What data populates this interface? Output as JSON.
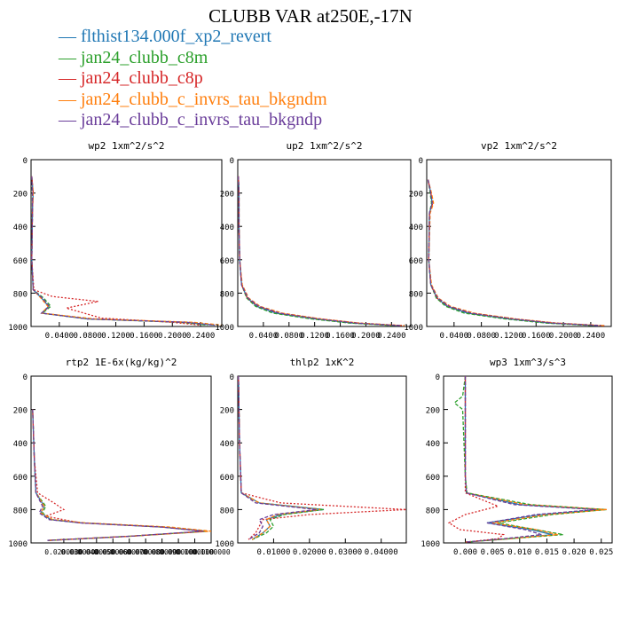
{
  "figure": {
    "title": "CLUBB VAR at250E,-17N"
  },
  "legend": [
    {
      "label": "flthist134.000f_xp2_revert",
      "color": "#1f77b4",
      "dash": "solid"
    },
    {
      "label": "jan24_clubb_c8m",
      "color": "#2ca02c",
      "dash": "solid"
    },
    {
      "label": "jan24_clubb_c8p",
      "color": "#d62728",
      "dash": "solid"
    },
    {
      "label": "jan24_clubb_c_invrs_tau_bkgndm",
      "color": "#ff7f0e",
      "dash": "solid"
    },
    {
      "label": "jan24_clubb_c_invrs_tau_bkgndp",
      "color": "#6a3d9a",
      "dash": "solid"
    }
  ],
  "series_styles": [
    {
      "color": "#1f77b4",
      "dash": ""
    },
    {
      "color": "#2ca02c",
      "dash": "4,2"
    },
    {
      "color": "#d62728",
      "dash": "2,2"
    },
    {
      "color": "#ff7f0e",
      "dash": "4,2"
    },
    {
      "color": "#6a3d9a",
      "dash": "4,2"
    }
  ],
  "chart_data": [
    {
      "type": "line",
      "title": "wp2  1xm^2/s^2",
      "xlim": [
        0,
        0.27
      ],
      "ylim": [
        0,
        1000
      ],
      "y_inverted": true,
      "xticks": [
        0.04,
        0.08,
        0.12,
        0.16,
        0.2,
        0.24
      ],
      "xtick_labels": [
        "0.0400",
        "0.0800",
        "0.1200",
        "0.1600",
        "0.2000",
        "0.2400"
      ],
      "yticks": [
        0,
        200,
        400,
        600,
        800,
        1000
      ],
      "series": [
        {
          "x": [
            0.001,
            0.003,
            0.002,
            0.001,
            0.003,
            0.015,
            0.025,
            0.015,
            0.08,
            0.22,
            0.26
          ],
          "y": [
            100,
            200,
            300,
            600,
            780,
            830,
            880,
            920,
            955,
            975,
            992
          ]
        },
        {
          "x": [
            0.001,
            0.002,
            0.002,
            0.001,
            0.003,
            0.018,
            0.028,
            0.016,
            0.08,
            0.21,
            0.25
          ],
          "y": [
            100,
            200,
            300,
            600,
            780,
            830,
            880,
            920,
            955,
            975,
            992
          ]
        },
        {
          "x": [
            0.001,
            0.003,
            0.002,
            0.001,
            0.004,
            0.03,
            0.095,
            0.05,
            0.1,
            0.2,
            0.24
          ],
          "y": [
            100,
            200,
            300,
            600,
            780,
            820,
            850,
            890,
            950,
            975,
            992
          ]
        },
        {
          "x": [
            0.001,
            0.003,
            0.002,
            0.001,
            0.003,
            0.014,
            0.024,
            0.015,
            0.09,
            0.23,
            0.27
          ],
          "y": [
            100,
            200,
            300,
            600,
            780,
            830,
            880,
            920,
            955,
            975,
            992
          ]
        },
        {
          "x": [
            0.001,
            0.002,
            0.002,
            0.001,
            0.003,
            0.016,
            0.026,
            0.015,
            0.08,
            0.22,
            0.26
          ],
          "y": [
            100,
            200,
            300,
            600,
            780,
            830,
            880,
            920,
            955,
            975,
            992
          ]
        }
      ]
    },
    {
      "type": "line",
      "title": "up2  1xm^2/s^2",
      "xlim": [
        0,
        0.27
      ],
      "ylim": [
        0,
        1000
      ],
      "y_inverted": true,
      "xticks": [
        0.04,
        0.08,
        0.12,
        0.16,
        0.2,
        0.24
      ],
      "xtick_labels": [
        "0.0400",
        "0.0800",
        "0.1200",
        "0.1600",
        "0.2000",
        "0.2400"
      ],
      "yticks": [
        0,
        200,
        400,
        600,
        800,
        1000
      ],
      "series": [
        {
          "x": [
            0.001,
            0.002,
            0.002,
            0.003,
            0.006,
            0.015,
            0.03,
            0.06,
            0.12,
            0.18,
            0.25
          ],
          "y": [
            100,
            200,
            400,
            600,
            750,
            830,
            880,
            920,
            955,
            980,
            995
          ]
        },
        {
          "x": [
            0.001,
            0.002,
            0.002,
            0.003,
            0.006,
            0.014,
            0.028,
            0.055,
            0.115,
            0.175,
            0.245
          ],
          "y": [
            100,
            200,
            400,
            600,
            750,
            830,
            880,
            920,
            955,
            980,
            995
          ]
        },
        {
          "x": [
            0.001,
            0.002,
            0.002,
            0.003,
            0.006,
            0.015,
            0.032,
            0.065,
            0.13,
            0.19,
            0.26
          ],
          "y": [
            100,
            200,
            400,
            600,
            750,
            830,
            880,
            920,
            955,
            980,
            995
          ]
        },
        {
          "x": [
            0.001,
            0.002,
            0.002,
            0.003,
            0.007,
            0.017,
            0.035,
            0.07,
            0.13,
            0.19,
            0.26
          ],
          "y": [
            100,
            200,
            400,
            600,
            750,
            830,
            880,
            920,
            955,
            980,
            995
          ]
        },
        {
          "x": [
            0.001,
            0.002,
            0.002,
            0.003,
            0.006,
            0.016,
            0.033,
            0.065,
            0.125,
            0.185,
            0.255
          ],
          "y": [
            100,
            200,
            400,
            600,
            750,
            830,
            880,
            920,
            955,
            980,
            995
          ]
        }
      ]
    },
    {
      "type": "line",
      "title": "vp2  1xm^2/s^2",
      "xlim": [
        0,
        0.27
      ],
      "ylim": [
        0,
        1000
      ],
      "y_inverted": true,
      "xticks": [
        0.04,
        0.08,
        0.12,
        0.16,
        0.2,
        0.24
      ],
      "xtick_labels": [
        "0.0400",
        "0.0800",
        "0.1200",
        "0.1600",
        "0.2000",
        "0.2400"
      ],
      "yticks": [
        0,
        200,
        400,
        600,
        800,
        1000
      ],
      "series": [
        {
          "x": [
            0.002,
            0.006,
            0.008,
            0.004,
            0.003,
            0.006,
            0.015,
            0.03,
            0.06,
            0.12,
            0.18,
            0.25
          ],
          "y": [
            120,
            200,
            260,
            320,
            600,
            750,
            830,
            880,
            920,
            955,
            980,
            995
          ]
        },
        {
          "x": [
            0.002,
            0.005,
            0.007,
            0.004,
            0.003,
            0.006,
            0.014,
            0.028,
            0.055,
            0.115,
            0.175,
            0.245
          ],
          "y": [
            120,
            200,
            260,
            320,
            600,
            750,
            830,
            880,
            920,
            955,
            980,
            995
          ]
        },
        {
          "x": [
            0.002,
            0.006,
            0.009,
            0.004,
            0.003,
            0.006,
            0.015,
            0.032,
            0.065,
            0.13,
            0.19,
            0.26
          ],
          "y": [
            120,
            200,
            260,
            320,
            600,
            750,
            830,
            880,
            920,
            955,
            980,
            995
          ]
        },
        {
          "x": [
            0.002,
            0.007,
            0.01,
            0.005,
            0.003,
            0.007,
            0.017,
            0.035,
            0.07,
            0.13,
            0.19,
            0.26
          ],
          "y": [
            120,
            200,
            260,
            320,
            600,
            750,
            830,
            880,
            920,
            955,
            980,
            995
          ]
        },
        {
          "x": [
            0.002,
            0.006,
            0.008,
            0.004,
            0.003,
            0.006,
            0.016,
            0.033,
            0.065,
            0.125,
            0.185,
            0.255
          ],
          "y": [
            120,
            200,
            260,
            320,
            600,
            750,
            830,
            880,
            920,
            955,
            980,
            995
          ]
        }
      ]
    },
    {
      "type": "line",
      "title": "rtp2  1E-6x(kg/kg)^2",
      "xlim": [
        0,
        0.11
      ],
      "ylim": [
        0,
        1000
      ],
      "y_inverted": true,
      "xticks": [
        0.02,
        0.03,
        0.04,
        0.05,
        0.06,
        0.07,
        0.08,
        0.09,
        0.1,
        0.11
      ],
      "xtick_labels": [
        "0.0200000",
        "0.0300000",
        "0.0400000",
        "0.0500000",
        "0.0600000",
        "0.0700000",
        "0.0800000",
        "0.0900000",
        "0.1000000",
        "0.1100000"
      ],
      "yticks": [
        0,
        200,
        400,
        600,
        800,
        1000
      ],
      "series": [
        {
          "x": [
            0.001,
            0.002,
            0.003,
            0.008,
            0.006,
            0.012,
            0.03,
            0.08,
            0.107,
            0.06,
            0.01
          ],
          "y": [
            200,
            500,
            700,
            780,
            820,
            860,
            880,
            905,
            930,
            960,
            985
          ]
        },
        {
          "x": [
            0.001,
            0.002,
            0.003,
            0.009,
            0.007,
            0.013,
            0.032,
            0.082,
            0.108,
            0.06,
            0.01
          ],
          "y": [
            200,
            500,
            700,
            780,
            820,
            860,
            880,
            905,
            930,
            960,
            985
          ]
        },
        {
          "x": [
            0.001,
            0.002,
            0.004,
            0.014,
            0.02,
            0.009,
            0.03,
            0.08,
            0.106,
            0.06,
            0.01
          ],
          "y": [
            200,
            500,
            700,
            760,
            800,
            840,
            880,
            905,
            930,
            960,
            985
          ]
        },
        {
          "x": [
            0.001,
            0.002,
            0.003,
            0.008,
            0.006,
            0.013,
            0.033,
            0.085,
            0.11,
            0.06,
            0.01
          ],
          "y": [
            200,
            500,
            700,
            780,
            820,
            860,
            880,
            905,
            930,
            960,
            985
          ]
        },
        {
          "x": [
            0.001,
            0.002,
            0.003,
            0.007,
            0.005,
            0.011,
            0.03,
            0.08,
            0.105,
            0.06,
            0.01
          ],
          "y": [
            200,
            500,
            700,
            780,
            820,
            860,
            880,
            905,
            930,
            960,
            985
          ]
        }
      ]
    },
    {
      "type": "line",
      "title": "thlp2  1xK^2",
      "xlim": [
        0,
        0.047
      ],
      "ylim": [
        0,
        1000
      ],
      "y_inverted": true,
      "xticks": [
        0.01,
        0.02,
        0.03,
        0.04
      ],
      "xtick_labels": [
        "0.01000",
        "0.02000",
        "0.03000",
        "0.04000"
      ],
      "yticks": [
        0,
        200,
        400,
        600,
        800,
        1000
      ],
      "series": [
        {
          "x": [
            0.0002,
            0.0005,
            0.001,
            0.006,
            0.024,
            0.012,
            0.008,
            0.009,
            0.007,
            0.004
          ],
          "y": [
            0,
            400,
            700,
            760,
            800,
            830,
            860,
            900,
            940,
            980
          ]
        },
        {
          "x": [
            0.0002,
            0.0005,
            0.001,
            0.006,
            0.024,
            0.013,
            0.009,
            0.01,
            0.008,
            0.004
          ],
          "y": [
            0,
            400,
            700,
            760,
            800,
            830,
            860,
            900,
            940,
            980
          ]
        },
        {
          "x": [
            0.0002,
            0.0005,
            0.001,
            0.012,
            0.047,
            0.02,
            0.007,
            0.006,
            0.005,
            0.003
          ],
          "y": [
            0,
            400,
            700,
            760,
            800,
            830,
            860,
            900,
            940,
            980
          ]
        },
        {
          "x": [
            0.0002,
            0.0005,
            0.001,
            0.006,
            0.023,
            0.011,
            0.008,
            0.009,
            0.007,
            0.004
          ],
          "y": [
            0,
            400,
            700,
            760,
            800,
            830,
            860,
            900,
            940,
            980
          ]
        },
        {
          "x": [
            0.0002,
            0.0005,
            0.001,
            0.005,
            0.022,
            0.01,
            0.006,
            0.007,
            0.006,
            0.003
          ],
          "y": [
            0,
            400,
            700,
            760,
            800,
            830,
            860,
            900,
            940,
            980
          ]
        }
      ]
    },
    {
      "type": "line",
      "title": "wp3  1xm^3/s^3",
      "xlim": [
        -0.004,
        0.027
      ],
      "ylim": [
        0,
        1000
      ],
      "y_inverted": true,
      "xticks": [
        0.0,
        0.005,
        0.01,
        0.015,
        0.02,
        0.025
      ],
      "xtick_labels": [
        "0.000",
        "0.005",
        "0.010",
        "0.015",
        "0.020",
        "0.025"
      ],
      "yticks": [
        0,
        200,
        400,
        600,
        800,
        1000
      ],
      "series": [
        {
          "x": [
            0.0,
            0.0,
            0.0,
            0.0,
            0.0002,
            0.01,
            0.025,
            0.014,
            0.004,
            0.012,
            0.016,
            0.008,
            0.0
          ],
          "y": [
            0,
            120,
            200,
            600,
            700,
            770,
            800,
            830,
            880,
            920,
            950,
            975,
            995
          ]
        },
        {
          "x": [
            0.0,
            -0.0005,
            -0.002,
            -0.0005,
            0.0,
            0.0003,
            0.012,
            0.026,
            0.016,
            0.006,
            0.013,
            0.018,
            0.008,
            0.0
          ],
          "y": [
            0,
            120,
            160,
            200,
            600,
            700,
            770,
            800,
            830,
            880,
            920,
            950,
            975,
            995
          ]
        },
        {
          "x": [
            0.0,
            0.0,
            0.0,
            0.0,
            0.0,
            0.006,
            0.0,
            -0.003,
            -0.001,
            0.007,
            0.006,
            0.0
          ],
          "y": [
            0,
            120,
            200,
            600,
            700,
            780,
            830,
            880,
            920,
            950,
            975,
            995
          ]
        },
        {
          "x": [
            0.0,
            0.0,
            0.0,
            0.0,
            0.0002,
            0.011,
            0.026,
            0.015,
            0.005,
            0.013,
            0.017,
            0.008,
            0.0
          ],
          "y": [
            0,
            120,
            200,
            600,
            700,
            770,
            800,
            830,
            880,
            920,
            950,
            975,
            995
          ]
        },
        {
          "x": [
            0.0,
            0.0,
            0.0,
            0.0,
            0.0002,
            0.009,
            0.024,
            0.013,
            0.004,
            0.011,
            0.014,
            0.007,
            0.0
          ],
          "y": [
            0,
            120,
            200,
            600,
            700,
            770,
            800,
            830,
            880,
            920,
            950,
            975,
            995
          ]
        }
      ]
    }
  ]
}
